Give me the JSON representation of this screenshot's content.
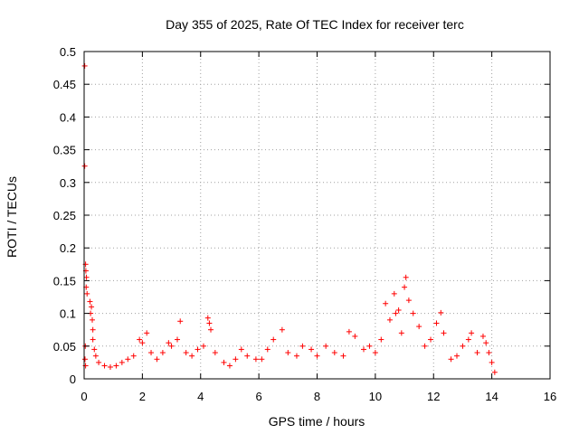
{
  "chart_data": {
    "type": "scatter",
    "title": "Day 355 of 2025, Rate Of TEC Index for receiver terc",
    "xlabel": "GPS time / hours",
    "ylabel": "ROTI / TECUs",
    "xlim": [
      0,
      16
    ],
    "ylim": [
      0,
      0.5
    ],
    "xticks": [
      "0",
      "2",
      "4",
      "6",
      "8",
      "10",
      "12",
      "14",
      "16"
    ],
    "yticks": [
      "0",
      "0.05",
      "0.1",
      "0.15",
      "0.2",
      "0.25",
      "0.3",
      "0.35",
      "0.4",
      "0.45",
      "0.5"
    ],
    "grid": true,
    "marker": "+",
    "color": "#ff0000",
    "series": [
      {
        "points": [
          [
            0.02,
            0.478
          ],
          [
            0.02,
            0.325
          ],
          [
            0.05,
            0.175
          ],
          [
            0.06,
            0.165
          ],
          [
            0.08,
            0.155
          ],
          [
            0.07,
            0.14
          ],
          [
            0.1,
            0.13
          ],
          [
            0.04,
            0.05
          ],
          [
            0.03,
            0.03
          ],
          [
            0.05,
            0.02
          ],
          [
            0.2,
            0.118
          ],
          [
            0.25,
            0.11
          ],
          [
            0.22,
            0.1
          ],
          [
            0.28,
            0.09
          ],
          [
            0.3,
            0.075
          ],
          [
            0.3,
            0.06
          ],
          [
            0.35,
            0.045
          ],
          [
            0.4,
            0.035
          ],
          [
            0.5,
            0.025
          ],
          [
            0.7,
            0.02
          ],
          [
            0.9,
            0.018
          ],
          [
            1.1,
            0.02
          ],
          [
            1.3,
            0.025
          ],
          [
            1.5,
            0.03
          ],
          [
            1.7,
            0.035
          ],
          [
            1.9,
            0.06
          ],
          [
            2.0,
            0.055
          ],
          [
            2.15,
            0.07
          ],
          [
            2.3,
            0.04
          ],
          [
            2.5,
            0.03
          ],
          [
            2.7,
            0.04
          ],
          [
            2.9,
            0.055
          ],
          [
            3.0,
            0.05
          ],
          [
            3.2,
            0.06
          ],
          [
            3.3,
            0.088
          ],
          [
            3.5,
            0.04
          ],
          [
            3.7,
            0.035
          ],
          [
            3.9,
            0.045
          ],
          [
            4.1,
            0.05
          ],
          [
            4.25,
            0.093
          ],
          [
            4.3,
            0.085
          ],
          [
            4.35,
            0.075
          ],
          [
            4.5,
            0.04
          ],
          [
            4.8,
            0.025
          ],
          [
            5.0,
            0.02
          ],
          [
            5.2,
            0.03
          ],
          [
            5.4,
            0.045
          ],
          [
            5.6,
            0.035
          ],
          [
            5.9,
            0.03
          ],
          [
            6.1,
            0.03
          ],
          [
            6.3,
            0.045
          ],
          [
            6.5,
            0.06
          ],
          [
            6.8,
            0.075
          ],
          [
            7.0,
            0.04
          ],
          [
            7.3,
            0.035
          ],
          [
            7.5,
            0.05
          ],
          [
            7.8,
            0.045
          ],
          [
            8.0,
            0.035
          ],
          [
            8.3,
            0.05
          ],
          [
            8.6,
            0.04
          ],
          [
            8.9,
            0.035
          ],
          [
            9.1,
            0.072
          ],
          [
            9.3,
            0.065
          ],
          [
            9.6,
            0.045
          ],
          [
            9.8,
            0.05
          ],
          [
            10.0,
            0.04
          ],
          [
            10.2,
            0.06
          ],
          [
            10.35,
            0.115
          ],
          [
            10.5,
            0.09
          ],
          [
            10.65,
            0.13
          ],
          [
            10.7,
            0.1
          ],
          [
            10.8,
            0.105
          ],
          [
            10.9,
            0.07
          ],
          [
            11.0,
            0.14
          ],
          [
            11.05,
            0.155
          ],
          [
            11.15,
            0.12
          ],
          [
            11.3,
            0.1
          ],
          [
            11.5,
            0.08
          ],
          [
            11.7,
            0.05
          ],
          [
            11.9,
            0.06
          ],
          [
            12.1,
            0.085
          ],
          [
            12.25,
            0.101
          ],
          [
            12.35,
            0.07
          ],
          [
            12.6,
            0.03
          ],
          [
            12.8,
            0.035
          ],
          [
            13.0,
            0.05
          ],
          [
            13.2,
            0.06
          ],
          [
            13.3,
            0.07
          ],
          [
            13.5,
            0.04
          ],
          [
            13.7,
            0.065
          ],
          [
            13.8,
            0.055
          ],
          [
            13.9,
            0.04
          ],
          [
            14.0,
            0.025
          ],
          [
            14.1,
            0.01
          ]
        ]
      }
    ]
  }
}
